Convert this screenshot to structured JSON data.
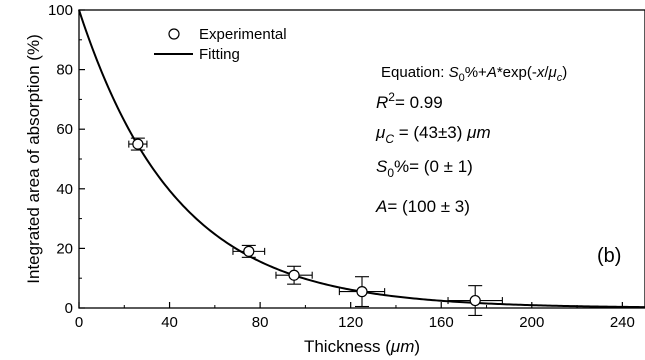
{
  "chart_data": {
    "type": "scatter",
    "xlabel": "Thickness (",
    "xlabel_unit": "μm",
    "xlabel_close": ")",
    "ylabel": "Integrated area of absorption (%)",
    "xlim": [
      0,
      250
    ],
    "ylim": [
      0,
      100
    ],
    "xticks": [
      0,
      40,
      80,
      120,
      160,
      200,
      240
    ],
    "yticks": [
      0,
      20,
      40,
      60,
      80,
      100
    ],
    "grid": false,
    "legend_position": "top-left",
    "panel_label": "(b)",
    "series": [
      {
        "name": "Experimental",
        "kind": "points",
        "points": [
          {
            "x": 26,
            "y": 55,
            "xerr": 4,
            "yerr": 2
          },
          {
            "x": 75,
            "y": 19,
            "xerr": 7,
            "yerr": 2
          },
          {
            "x": 95,
            "y": 11,
            "xerr": 8,
            "yerr": 3
          },
          {
            "x": 125,
            "y": 5.5,
            "xerr": 10,
            "yerr": 5
          },
          {
            "x": 175,
            "y": 2.5,
            "xerr": 12,
            "yerr": 5
          }
        ]
      },
      {
        "name": "Fitting",
        "kind": "line",
        "model": {
          "S0": 0,
          "A": 100,
          "mu_c": 43
        }
      }
    ],
    "annotations": {
      "equation": {
        "prefix": "Equation: ",
        "s0": "S",
        "s0_sub": "0",
        "mid": "%+",
        "a": "A",
        "exp_open": "*exp(-",
        "x": "x",
        "slash": "/",
        "mu": "μ",
        "mu_sub": "c",
        "close": ")"
      },
      "r2": {
        "r": "R",
        "sup": "2",
        "value": "= 0.99"
      },
      "mu_c": {
        "mu": "μ",
        "sub": "C",
        "value": " = (43±3) ",
        "unit": "μm"
      },
      "s0": {
        "s": "S",
        "sub": "0",
        "value": "%= (0 ± 1)"
      },
      "a": {
        "a": "A",
        "value": "= (100 ± 3)"
      }
    }
  }
}
